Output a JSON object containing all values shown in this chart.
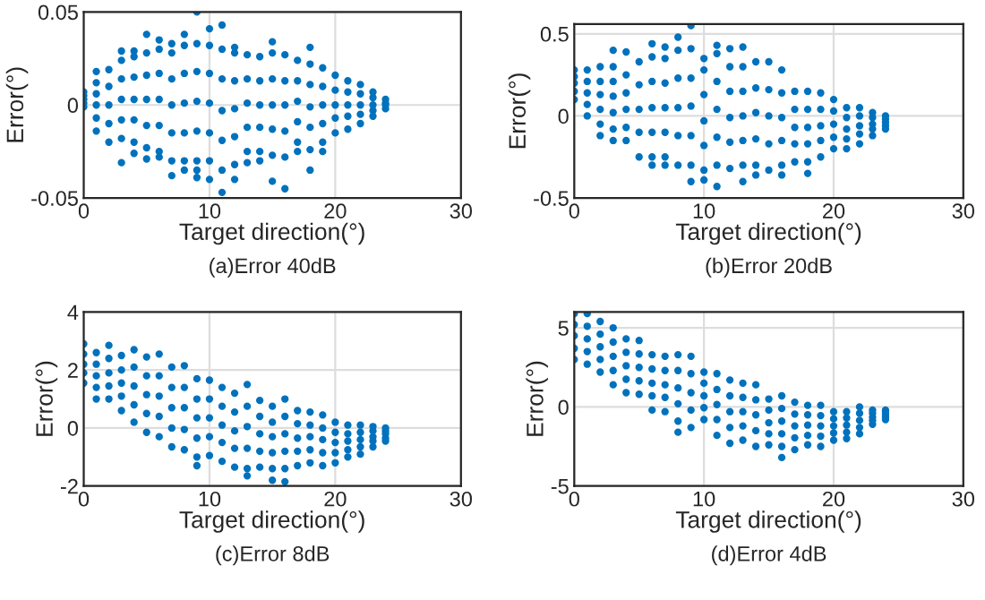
{
  "chart_data": [
    {
      "type": "scatter",
      "xlabel": "Target direction(°)",
      "ylabel": "Error(°)",
      "annotations": [
        "(a)Error 40dB"
      ],
      "xlim": [
        0,
        30
      ],
      "xticks": [
        0,
        10,
        20,
        30
      ],
      "ylim": [
        -0.05,
        0.05
      ],
      "yticks": [
        -0.05,
        0,
        0.05
      ],
      "grid": true,
      "marker": "circle",
      "series": [
        {
          "color": "#0072bd",
          "x": [
            0,
            0,
            0,
            0,
            0,
            1,
            1,
            1,
            1,
            1,
            1,
            2,
            2,
            2,
            2,
            2,
            3,
            3,
            3,
            3,
            3,
            3,
            3,
            4,
            4,
            4,
            4,
            4,
            4,
            4,
            5,
            5,
            5,
            5,
            5,
            5,
            5,
            6,
            6,
            6,
            6,
            6,
            6,
            6,
            7,
            7,
            7,
            7,
            7,
            7,
            7,
            8,
            8,
            8,
            8,
            8,
            8,
            8,
            9,
            9,
            9,
            9,
            9,
            9,
            9,
            9,
            10,
            10,
            10,
            10,
            10,
            10,
            10,
            11,
            11,
            11,
            11,
            11,
            11,
            11,
            12,
            12,
            12,
            12,
            12,
            12,
            12,
            13,
            13,
            13,
            13,
            13,
            13,
            14,
            14,
            14,
            14,
            14,
            14,
            15,
            15,
            15,
            15,
            15,
            15,
            15,
            16,
            16,
            16,
            16,
            16,
            16,
            17,
            17,
            17,
            17,
            17,
            17,
            18,
            18,
            18,
            18,
            18,
            18,
            18,
            19,
            19,
            19,
            19,
            19,
            19,
            20,
            20,
            20,
            20,
            20,
            21,
            21,
            21,
            21,
            21,
            22,
            22,
            22,
            22,
            22,
            23,
            23,
            23,
            23,
            23,
            24,
            24,
            24,
            24
          ],
          "values": [
            -0.001,
            0.001,
            0.003,
            0.005,
            0.007,
            -0.014,
            -0.007,
            0,
            0.006,
            0.012,
            0.018,
            -0.02,
            -0.01,
            0,
            0.01,
            0.019,
            -0.031,
            -0.018,
            -0.008,
            0.003,
            0.014,
            0.024,
            0.029,
            -0.026,
            -0.02,
            -0.008,
            0.003,
            0.015,
            0.026,
            0.029,
            -0.029,
            -0.023,
            -0.011,
            0.003,
            0.016,
            0.028,
            0.038,
            -0.028,
            -0.025,
            -0.011,
            0.003,
            0.017,
            0.03,
            0.035,
            -0.038,
            -0.03,
            -0.015,
            0,
            0.014,
            0.028,
            0.033,
            -0.035,
            -0.03,
            -0.015,
            0.001,
            0.017,
            0.032,
            0.038,
            -0.039,
            -0.035,
            -0.03,
            -0.014,
            0.002,
            0.018,
            0.033,
            0.05,
            -0.04,
            -0.03,
            -0.015,
            0.001,
            0.017,
            0.032,
            0.041,
            -0.047,
            -0.035,
            -0.019,
            -0.003,
            0.014,
            0.03,
            0.043,
            -0.04,
            -0.032,
            -0.017,
            -0.002,
            0.013,
            0.028,
            0.031,
            -0.031,
            -0.025,
            -0.012,
            0.001,
            0.014,
            0.027,
            -0.03,
            -0.025,
            -0.012,
            0,
            0.013,
            0.026,
            -0.041,
            -0.027,
            -0.013,
            0,
            0.014,
            0.028,
            0.034,
            -0.045,
            -0.028,
            -0.014,
            0,
            0.013,
            0.027,
            -0.025,
            -0.02,
            -0.009,
            0.002,
            0.013,
            0.024,
            -0.035,
            -0.024,
            -0.012,
            -0.001,
            0.011,
            0.022,
            0.031,
            -0.025,
            -0.02,
            -0.01,
            0,
            0.01,
            0.02,
            -0.015,
            -0.007,
            0,
            0.008,
            0.016,
            -0.013,
            -0.006,
            0,
            0.007,
            0.013,
            -0.01,
            -0.005,
            0,
            0.006,
            0.011,
            -0.006,
            -0.003,
            0,
            0.004,
            0.007,
            -0.002,
            0,
            0.001,
            0.003
          ]
        }
      ]
    },
    {
      "type": "scatter",
      "xlabel": "Target direction(°)",
      "ylabel": "Error(°)",
      "annotations": [
        "(b)Error 20dB"
      ],
      "xlim": [
        0,
        30
      ],
      "xticks": [
        0,
        10,
        20,
        30
      ],
      "ylim": [
        -0.5,
        0.56
      ],
      "yticks": [
        -0.5,
        0,
        0.5
      ],
      "grid": true,
      "marker": "circle",
      "series": [
        {
          "color": "#0072bd",
          "x": [
            0,
            0,
            0,
            0,
            0,
            1,
            1,
            1,
            1,
            1,
            2,
            2,
            2,
            2,
            2,
            2,
            3,
            3,
            3,
            3,
            3,
            3,
            3,
            4,
            4,
            4,
            4,
            4,
            4,
            5,
            5,
            5,
            5,
            5,
            6,
            6,
            6,
            6,
            6,
            6,
            6,
            7,
            7,
            7,
            7,
            7,
            7,
            7,
            8,
            8,
            8,
            8,
            8,
            8,
            9,
            9,
            9,
            9,
            9,
            9,
            9,
            10,
            10,
            10,
            10,
            10,
            10,
            10,
            11,
            11,
            11,
            11,
            11,
            11,
            11,
            12,
            12,
            12,
            12,
            12,
            12,
            13,
            13,
            13,
            13,
            13,
            13,
            13,
            14,
            14,
            14,
            14,
            14,
            14,
            15,
            15,
            15,
            15,
            15,
            16,
            16,
            16,
            16,
            16,
            16,
            17,
            17,
            17,
            17,
            17,
            18,
            18,
            18,
            18,
            18,
            18,
            19,
            19,
            19,
            19,
            19,
            20,
            20,
            20,
            20,
            20,
            21,
            21,
            21,
            21,
            21,
            22,
            22,
            22,
            22,
            22,
            23,
            23,
            23,
            23,
            23,
            24,
            24,
            24,
            24,
            24
          ],
          "values": [
            0.1,
            0.15,
            0.2,
            0.24,
            0.28,
            0,
            0.07,
            0.14,
            0.21,
            0.28,
            -0.12,
            -0.05,
            0.04,
            0.13,
            0.21,
            0.3,
            -0.15,
            -0.08,
            0.02,
            0.12,
            0.21,
            0.3,
            0.4,
            -0.15,
            -0.07,
            0.04,
            0.14,
            0.25,
            0.39,
            -0.25,
            -0.1,
            0.04,
            0.19,
            0.33,
            -0.3,
            -0.25,
            -0.1,
            0.05,
            0.21,
            0.36,
            0.44,
            -0.3,
            -0.25,
            -0.1,
            0.05,
            0.2,
            0.35,
            0.42,
            -0.3,
            -0.12,
            0.05,
            0.23,
            0.4,
            0.48,
            -0.4,
            -0.3,
            -0.12,
            0.06,
            0.23,
            0.41,
            0.55,
            -0.39,
            -0.33,
            -0.18,
            -0.03,
            0.13,
            0.28,
            0.35,
            -0.43,
            -0.3,
            -0.13,
            0.04,
            0.21,
            0.38,
            0.43,
            -0.32,
            -0.16,
            -0.01,
            0.15,
            0.3,
            0.41,
            -0.4,
            -0.3,
            -0.15,
            0,
            0.15,
            0.3,
            0.42,
            -0.36,
            -0.3,
            -0.14,
            0.02,
            0.17,
            0.33,
            -0.33,
            -0.17,
            0,
            0.16,
            0.33,
            -0.36,
            -0.3,
            -0.15,
            -0.01,
            0.14,
            0.28,
            -0.28,
            -0.17,
            -0.07,
            0.04,
            0.15,
            -0.35,
            -0.28,
            -0.17,
            -0.07,
            0.04,
            0.15,
            -0.25,
            -0.15,
            -0.06,
            0.04,
            0.14,
            -0.2,
            -0.13,
            -0.05,
            0.03,
            0.1,
            -0.2,
            -0.14,
            -0.08,
            -0.01,
            0.05,
            -0.17,
            -0.11,
            -0.06,
            0,
            0.05,
            -0.12,
            -0.08,
            -0.05,
            -0.01,
            0.02,
            -0.08,
            -0.06,
            -0.04,
            -0.02,
            0
          ]
        }
      ]
    },
    {
      "type": "scatter",
      "xlabel": "Target direction(°)",
      "ylabel": "Error(°)",
      "annotations": [
        "(c)Error 8dB"
      ],
      "xlim": [
        0,
        30
      ],
      "xticks": [
        0,
        10,
        20,
        30
      ],
      "ylim": [
        -2,
        4
      ],
      "yticks": [
        -2,
        0,
        2,
        4
      ],
      "grid": true,
      "marker": "circle",
      "series": [
        {
          "color": "#0072bd",
          "x": [
            0,
            0,
            0,
            0,
            0,
            1,
            1,
            1,
            1,
            1,
            2,
            2,
            2,
            2,
            2,
            3,
            3,
            3,
            3,
            3,
            4,
            4,
            4,
            4,
            4,
            5,
            5,
            5,
            5,
            5,
            6,
            6,
            6,
            6,
            6,
            7,
            7,
            7,
            7,
            7,
            8,
            8,
            8,
            8,
            8,
            9,
            9,
            9,
            9,
            9,
            9,
            10,
            10,
            10,
            10,
            10,
            11,
            11,
            11,
            11,
            11,
            12,
            12,
            12,
            12,
            12,
            13,
            13,
            13,
            13,
            13,
            13,
            14,
            14,
            14,
            14,
            14,
            15,
            15,
            15,
            15,
            15,
            15,
            16,
            16,
            16,
            16,
            16,
            16,
            17,
            17,
            17,
            17,
            17,
            18,
            18,
            18,
            18,
            18,
            19,
            19,
            19,
            19,
            19,
            20,
            20,
            20,
            20,
            20,
            21,
            21,
            21,
            21,
            21,
            22,
            22,
            22,
            22,
            22,
            23,
            23,
            23,
            23,
            23,
            24,
            24,
            24,
            24,
            24
          ],
          "values": [
            1.55,
            1.9,
            2.2,
            2.55,
            2.9,
            1.0,
            1.4,
            1.8,
            2.2,
            2.6,
            1.0,
            1.45,
            1.9,
            2.4,
            2.85,
            0.6,
            1.1,
            1.55,
            2.0,
            2.5,
            0.2,
            0.8,
            1.45,
            2.1,
            2.7,
            -0.15,
            0.5,
            1.15,
            1.8,
            2.45,
            -0.3,
            0.4,
            1.1,
            1.8,
            2.55,
            -0.65,
            0,
            0.7,
            1.4,
            2.1,
            -0.75,
            -0.05,
            0.7,
            1.4,
            2.15,
            -1.3,
            -1.0,
            -0.35,
            0.35,
            1.0,
            1.7,
            -0.95,
            -0.3,
            0.35,
            1.0,
            1.65,
            -1.15,
            -0.5,
            0.1,
            0.75,
            1.4,
            -1.35,
            -0.7,
            -0.1,
            0.55,
            1.2,
            -1.65,
            -1.4,
            -0.7,
            0.05,
            0.75,
            1.5,
            -1.35,
            -0.8,
            -0.2,
            0.4,
            0.95,
            -1.8,
            -1.4,
            -0.85,
            -0.3,
            0.2,
            0.75,
            -1.85,
            -1.4,
            -0.8,
            -0.2,
            0.4,
            1.0,
            -1.3,
            -0.8,
            -0.35,
            0.15,
            0.6,
            -1.2,
            -0.75,
            -0.3,
            0.1,
            0.55,
            -1.3,
            -0.85,
            -0.4,
            0,
            0.45,
            -1.2,
            -0.85,
            -0.5,
            -0.15,
            0.2,
            -1.0,
            -0.75,
            -0.45,
            -0.2,
            0.1,
            -0.9,
            -0.65,
            -0.4,
            -0.15,
            0.1,
            -0.65,
            -0.45,
            -0.3,
            -0.1,
            0.05,
            -0.45,
            -0.35,
            -0.2,
            -0.1,
            0
          ]
        }
      ]
    },
    {
      "type": "scatter",
      "xlabel": "Target direction(°)",
      "ylabel": "Error(°)",
      "annotations": [
        "(d)Error 4dB"
      ],
      "xlim": [
        0,
        30
      ],
      "xticks": [
        0,
        10,
        20,
        30
      ],
      "ylim": [
        -5,
        6
      ],
      "yticks": [
        -5,
        0,
        5
      ],
      "grid": true,
      "marker": "circle",
      "series": [
        {
          "color": "#0072bd",
          "x": [
            0,
            0,
            0,
            0,
            0,
            1,
            1,
            1,
            1,
            1,
            2,
            2,
            2,
            2,
            2,
            3,
            3,
            3,
            3,
            3,
            4,
            4,
            4,
            4,
            4,
            5,
            5,
            5,
            5,
            5,
            6,
            6,
            6,
            6,
            6,
            7,
            7,
            7,
            7,
            7,
            8,
            8,
            8,
            8,
            8,
            8,
            9,
            9,
            9,
            9,
            9,
            10,
            10,
            10,
            10,
            10,
            11,
            11,
            11,
            11,
            11,
            12,
            12,
            12,
            12,
            12,
            13,
            13,
            13,
            13,
            13,
            14,
            14,
            14,
            14,
            14,
            15,
            15,
            15,
            15,
            15,
            16,
            16,
            16,
            16,
            16,
            16,
            17,
            17,
            17,
            17,
            17,
            18,
            18,
            18,
            18,
            18,
            19,
            19,
            19,
            19,
            19,
            20,
            20,
            20,
            20,
            20,
            21,
            21,
            21,
            21,
            21,
            22,
            22,
            22,
            22,
            22,
            23,
            23,
            23,
            23,
            23,
            24,
            24,
            24,
            24,
            24
          ],
          "values": [
            3.0,
            3.7,
            4.5,
            5.2,
            5.9,
            2.7,
            3.5,
            4.3,
            5.1,
            5.9,
            2.2,
            3.0,
            3.8,
            4.6,
            5.4,
            1.4,
            2.3,
            3.2,
            4.1,
            5.0,
            0.9,
            1.75,
            2.6,
            3.45,
            4.3,
            0.8,
            1.65,
            2.5,
            3.35,
            4.2,
            -0.2,
            0.7,
            1.5,
            2.4,
            3.3,
            -0.3,
            0.6,
            1.4,
            2.3,
            3.2,
            -1.6,
            -0.9,
            0.2,
            1.2,
            2.3,
            3.3,
            -1.3,
            -0.2,
            0.9,
            2.1,
            3.2,
            -0.8,
            -0.05,
            0.7,
            1.5,
            2.2,
            -1.8,
            -0.8,
            0.15,
            1.1,
            2.1,
            -2.3,
            -1.3,
            -0.3,
            0.7,
            1.7,
            -2.1,
            -1.2,
            -0.3,
            0.6,
            1.5,
            -2.5,
            -1.5,
            -0.5,
            0.45,
            1.4,
            -2.4,
            -1.7,
            -1.0,
            -0.2,
            0.5,
            -3.2,
            -2.5,
            -1.7,
            -0.9,
            -0.1,
            0.7,
            -2.7,
            -1.95,
            -1.2,
            -0.45,
            0.3,
            -2.4,
            -1.8,
            -1.15,
            -0.5,
            0.1,
            -2.5,
            -1.85,
            -1.2,
            -0.55,
            0.1,
            -2.1,
            -1.65,
            -1.2,
            -0.75,
            -0.3,
            -2.0,
            -1.6,
            -1.15,
            -0.7,
            -0.3,
            -1.7,
            -1.3,
            -0.85,
            -0.4,
            0,
            -1.1,
            -0.85,
            -0.65,
            -0.4,
            -0.2,
            -0.8,
            -0.65,
            -0.5,
            -0.35,
            -0.2
          ]
        }
      ]
    }
  ]
}
